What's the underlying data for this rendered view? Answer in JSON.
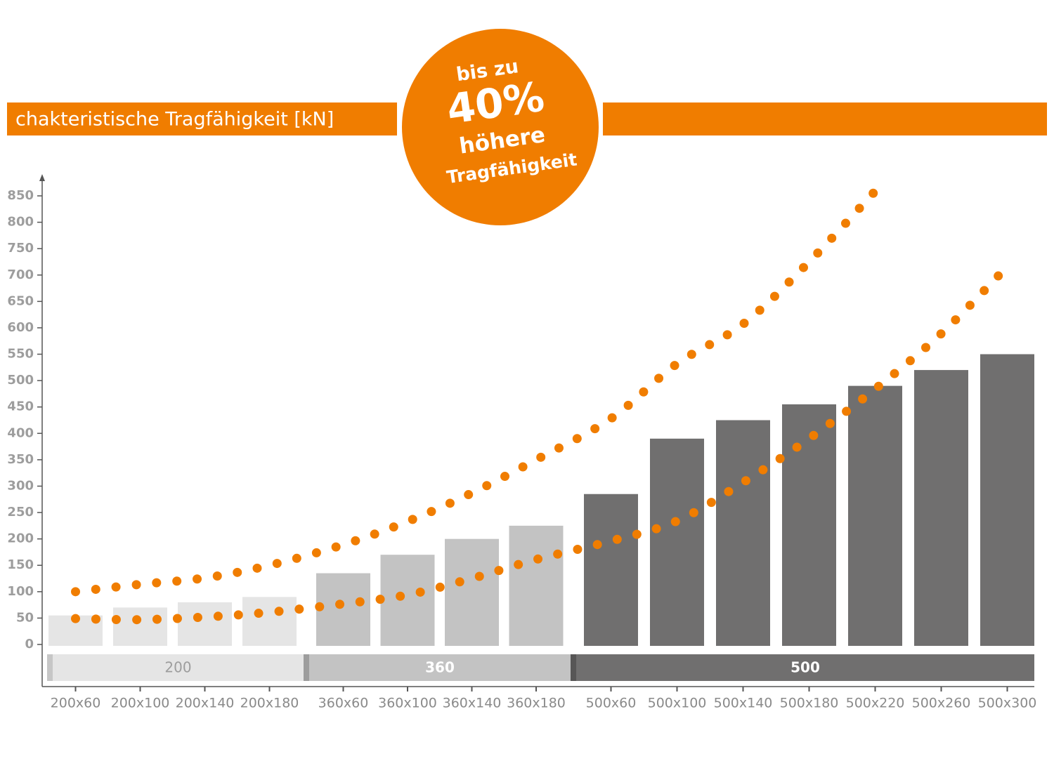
{
  "chart_data": {
    "type": "bar",
    "title": "chakteristische Tragfähigkeit [kN]",
    "badge": [
      "bis zu",
      "40%",
      "höhere",
      "Tragfähigkeit"
    ],
    "categories": [
      "200x60",
      "200x100",
      "200x140",
      "200x180",
      "360x60",
      "360x100",
      "360x140",
      "360x180",
      "500x60",
      "500x100",
      "500x140",
      "500x180",
      "500x220",
      "500x260",
      "500x300"
    ],
    "values": [
      55,
      70,
      80,
      90,
      135,
      170,
      200,
      225,
      285,
      390,
      425,
      455,
      490,
      520,
      550
    ],
    "groups": [
      {
        "label": "200",
        "color": "#e5e5e5"
      },
      {
        "label": "360",
        "color": "#c3c3c3"
      },
      {
        "label": "500",
        "color": "#706f6f"
      }
    ],
    "trend_lines": [
      {
        "color": "#f07d00",
        "values": [
          100,
          114,
          126,
          150,
          189,
          233,
          287,
          350,
          428,
          532,
          607,
          725,
          859,
          null,
          null
        ]
      },
      {
        "color": "#f07d00",
        "values": [
          49,
          47,
          52,
          61,
          77,
          94,
          125,
          161,
          196,
          234,
          307,
          390,
          484,
          589,
          716
        ]
      }
    ],
    "ylim": [
      0,
      850
    ],
    "yticks": [
      0,
      50,
      100,
      150,
      200,
      250,
      300,
      350,
      400,
      450,
      500,
      550,
      600,
      650,
      700,
      750,
      800,
      850
    ]
  }
}
